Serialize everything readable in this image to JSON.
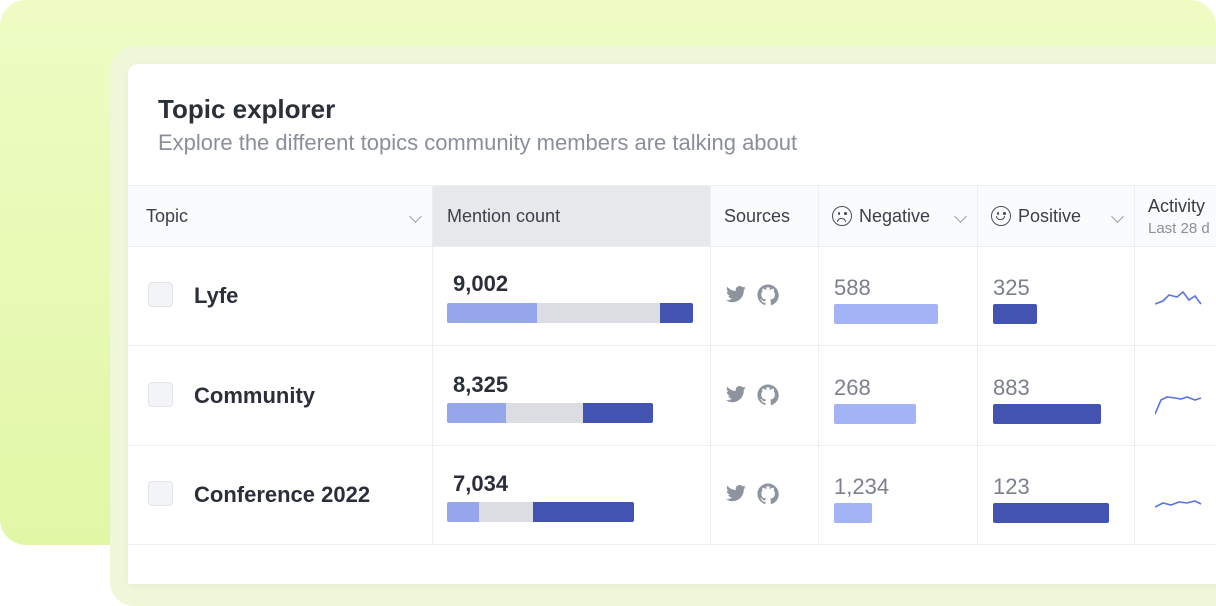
{
  "header": {
    "title": "Topic explorer",
    "subtitle": "Explore the different topics community members are talking about"
  },
  "columns": {
    "topic": "Topic",
    "mention_count": "Mention count",
    "sources": "Sources",
    "negative": "Negative",
    "positive": "Positive",
    "activity": "Activity",
    "activity_sub": "Last 28 d"
  },
  "colors": {
    "bar_light": "#96a6ea",
    "bar_dark": "#4353b2",
    "bar_grey": "#dcdde2",
    "negative_bar": "#a3b3f6",
    "positive_bar": "#4353b2",
    "sparkline": "#5b74e0"
  },
  "icons": [
    "twitter-icon",
    "github-icon",
    "negative-face-icon",
    "positive-face-icon",
    "chevron-down-icon"
  ],
  "rows": [
    {
      "topic": "Lyfe",
      "mentions": "9,002",
      "mention_segments": [
        0.365,
        0.5,
        0.135
      ],
      "negative": "588",
      "negative_level": 0.52,
      "positive": "325",
      "positive_level": 0.22
    },
    {
      "topic": "Community",
      "mentions": "8,325",
      "mention_segments": [
        0.24,
        0.315,
        0.285
      ],
      "negative": "268",
      "negative_level": 0.41,
      "positive": "883",
      "positive_level": 0.54
    },
    {
      "topic": "Conference 2022",
      "mentions": "7,034",
      "mention_segments": [
        0.13,
        0.22,
        0.41
      ],
      "negative": "1,234",
      "negative_level": 0.19,
      "positive": "123",
      "positive_level": 0.58
    }
  ]
}
